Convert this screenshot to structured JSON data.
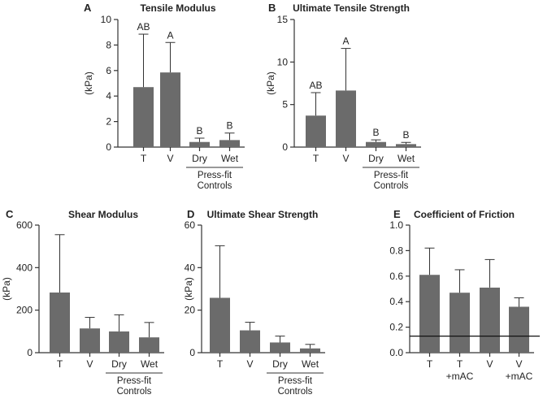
{
  "chart_data": [
    {
      "id": "A",
      "type": "bar",
      "title": "Tensile Modulus",
      "ylabel": "(kPa)",
      "ylim": [
        0,
        10
      ],
      "yticks": [
        0,
        2,
        4,
        6,
        8,
        10
      ],
      "categories": [
        "T",
        "V",
        "Dry",
        "Wet"
      ],
      "values": [
        4.7,
        5.85,
        0.4,
        0.55
      ],
      "errors": [
        4.15,
        2.35,
        0.3,
        0.55
      ],
      "significance": [
        "AB",
        "A",
        "B",
        "B"
      ],
      "group_label": [
        "Press-fit",
        "Controls"
      ]
    },
    {
      "id": "B",
      "type": "bar",
      "title": "Ultimate Tensile Strength",
      "ylabel": "(kPa)",
      "ylim": [
        0,
        15
      ],
      "yticks": [
        0,
        5,
        10,
        15
      ],
      "categories": [
        "T",
        "V",
        "Dry",
        "Wet"
      ],
      "values": [
        3.7,
        6.65,
        0.6,
        0.35
      ],
      "errors": [
        2.7,
        4.95,
        0.25,
        0.2
      ],
      "significance": [
        "AB",
        "A",
        "B",
        "B"
      ],
      "group_label": [
        "Press-fit",
        "Controls"
      ]
    },
    {
      "id": "C",
      "type": "bar",
      "title": "Shear Modulus",
      "ylabel": "(kPa)",
      "ylim": [
        0,
        600
      ],
      "yticks": [
        0,
        200,
        400,
        600
      ],
      "categories": [
        "T",
        "V",
        "Dry",
        "Wet"
      ],
      "values": [
        283,
        114,
        100,
        72
      ],
      "errors": [
        272,
        52,
        78,
        70
      ],
      "group_label": [
        "Press-fit",
        "Controls"
      ]
    },
    {
      "id": "D",
      "type": "bar",
      "title": "Ultimate Shear Strength",
      "ylabel": "(kPa)",
      "ylim": [
        0,
        60
      ],
      "yticks": [
        0,
        20,
        40,
        60
      ],
      "categories": [
        "T",
        "V",
        "Dry",
        "Wet"
      ],
      "values": [
        25.8,
        10.5,
        4.8,
        2.0
      ],
      "errors": [
        24.5,
        3.8,
        3.0,
        1.9
      ],
      "group_label": [
        "Press-fit",
        "Controls"
      ]
    },
    {
      "id": "E",
      "type": "bar",
      "title": "Coefficient of Friction",
      "ylabel": "",
      "ylim": [
        0,
        1.0
      ],
      "yticks": [
        "0.0",
        "0.2",
        "0.4",
        "0.6",
        "0.8",
        "1.0"
      ],
      "categories": [
        "T",
        "T",
        "V",
        "V"
      ],
      "sublabels": [
        "",
        "+mAC",
        "",
        "+mAC"
      ],
      "values": [
        0.61,
        0.47,
        0.51,
        0.36
      ],
      "errors": [
        0.21,
        0.18,
        0.22,
        0.07
      ],
      "reference_line": 0.13
    }
  ],
  "colors": {
    "bar": "#6b6b6b",
    "axis": "#333333",
    "text": "#222222"
  }
}
